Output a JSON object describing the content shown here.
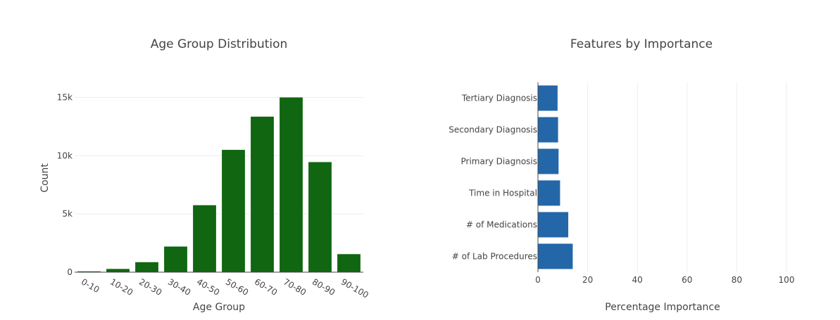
{
  "chart_data": [
    {
      "type": "bar",
      "orientation": "vertical",
      "title": "Age Group Distribution",
      "xlabel": "Age Group",
      "ylabel": "Count",
      "categories": [
        "0-10",
        "10-20",
        "20-30",
        "30-40",
        "40-50",
        "50-60",
        "60-70",
        "70-80",
        "80-90",
        "90-100"
      ],
      "values": [
        70,
        280,
        860,
        2200,
        5750,
        10500,
        13350,
        15000,
        9450,
        1550
      ],
      "ylim": [
        0,
        16300
      ],
      "yticks": [
        0,
        5000,
        10000,
        15000
      ],
      "ytick_labels": [
        "0",
        "5k",
        "10k",
        "15k"
      ],
      "color": "#116611",
      "grid": true
    },
    {
      "type": "bar",
      "orientation": "horizontal",
      "title": "Features by Importance",
      "xlabel": "Percentage Importance",
      "ylabel": "",
      "categories": [
        "# of Lab Procedures",
        "# of Medications",
        "Time in Hospital",
        "Primary Diagnosis",
        "Secondary Diagnosis",
        "Tertiary Diagnosis"
      ],
      "values": [
        14.0,
        12.2,
        8.9,
        8.3,
        8.1,
        7.9
      ],
      "xlim": [
        0,
        100
      ],
      "xticks": [
        0,
        20,
        40,
        60,
        80,
        100
      ],
      "xtick_labels": [
        "0",
        "20",
        "40",
        "60",
        "80",
        "100"
      ],
      "color": "#2467a8",
      "grid": true
    }
  ]
}
